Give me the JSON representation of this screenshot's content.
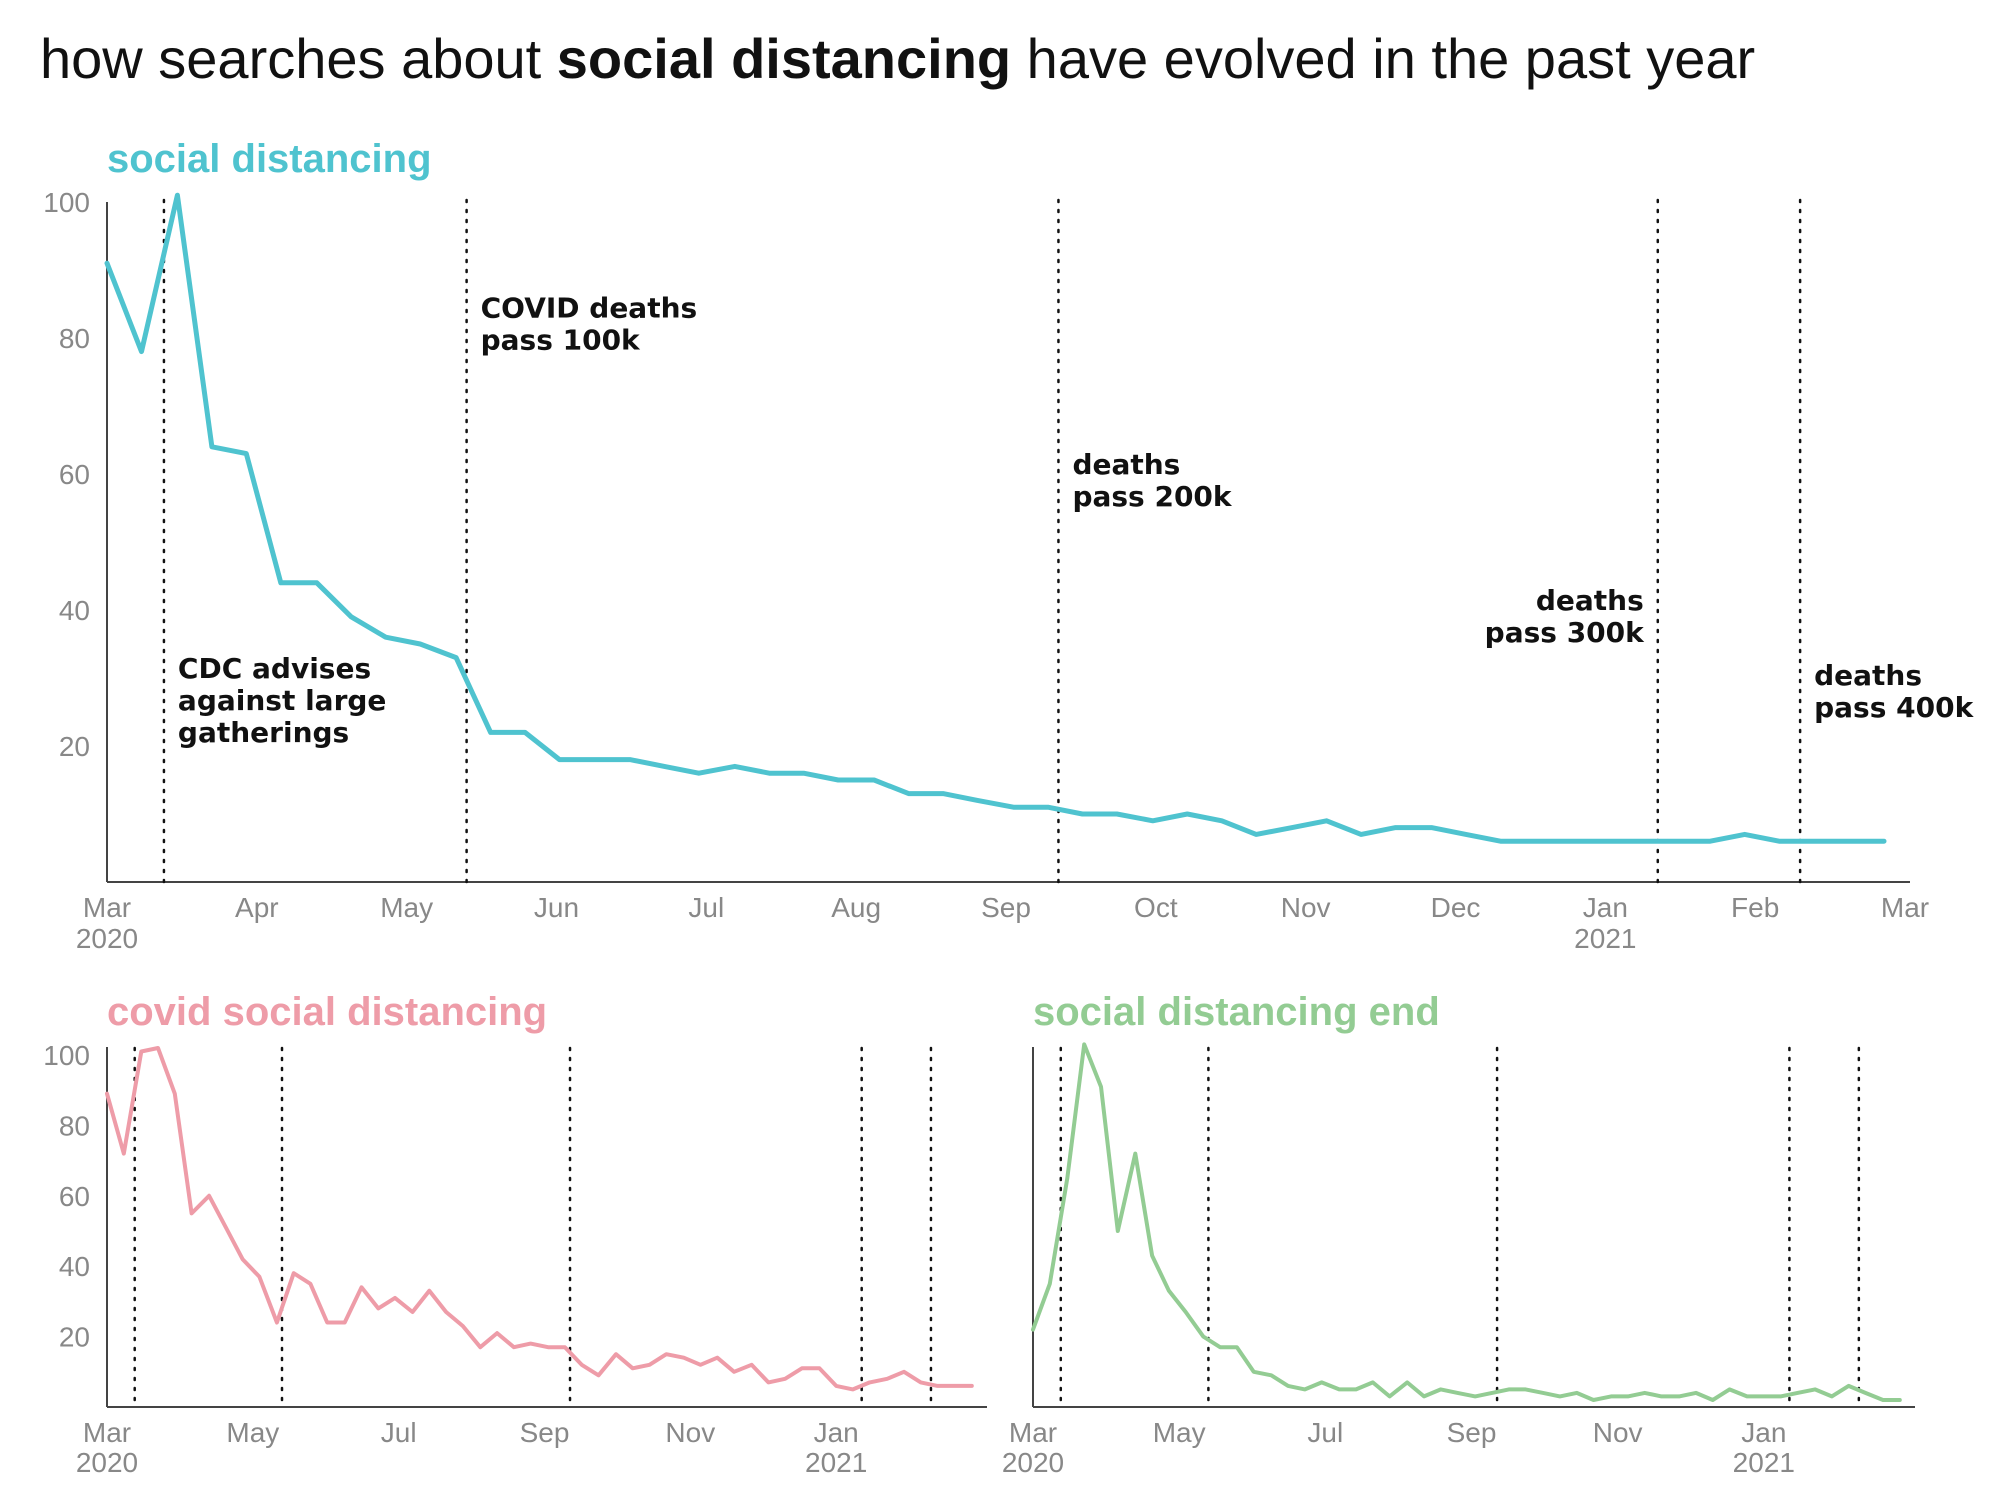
{
  "title": {
    "before": "how searches about ",
    "bold": "social distancing",
    "after": " have evolved in the past year"
  },
  "chart_data": [
    {
      "type": "line",
      "title": "social distancing",
      "color": "#4fc3cf",
      "ylim": [
        0,
        100
      ],
      "yticks": [
        20,
        40,
        60,
        80,
        100
      ],
      "xticks": [
        {
          "label": "Mar",
          "sub": "2020",
          "t": 0
        },
        {
          "label": "Apr",
          "sub": "",
          "t": 1
        },
        {
          "label": "May",
          "sub": "",
          "t": 2
        },
        {
          "label": "Jun",
          "sub": "",
          "t": 3
        },
        {
          "label": "Jul",
          "sub": "",
          "t": 4
        },
        {
          "label": "Aug",
          "sub": "",
          "t": 5
        },
        {
          "label": "Sep",
          "sub": "",
          "t": 6
        },
        {
          "label": "Oct",
          "sub": "",
          "t": 7
        },
        {
          "label": "Nov",
          "sub": "",
          "t": 8
        },
        {
          "label": "Dec",
          "sub": "",
          "t": 9
        },
        {
          "label": "Jan",
          "sub": "2021",
          "t": 10
        },
        {
          "label": "Feb",
          "sub": "",
          "t": 11
        },
        {
          "label": "Mar",
          "sub": "",
          "t": 12
        }
      ],
      "events": [
        {
          "t": 0.38,
          "label": [
            "CDC advises",
            "against large",
            "gatherings"
          ],
          "label_y": 30,
          "align": "right-of-line"
        },
        {
          "t": 2.4,
          "label": [
            "COVID deaths",
            "pass 100k"
          ],
          "label_y": 83,
          "align": "right-of-line"
        },
        {
          "t": 6.35,
          "label": [
            "deaths",
            "pass 200k"
          ],
          "label_y": 60,
          "align": "right-of-line"
        },
        {
          "t": 10.35,
          "label": [
            "deaths",
            "pass 300k"
          ],
          "label_y": 40,
          "align": "left-of-line"
        },
        {
          "t": 11.3,
          "label": [
            "deaths",
            "pass 400k"
          ],
          "label_y": 29,
          "align": "right-of-line"
        }
      ],
      "x": [
        0,
        0.23,
        0.47,
        0.7,
        0.93,
        1.16,
        1.4,
        1.63,
        1.86,
        2.09,
        2.33,
        2.56,
        2.79,
        3.02,
        3.26,
        3.49,
        3.72,
        3.95,
        4.19,
        4.42,
        4.65,
        4.88,
        5.12,
        5.35,
        5.58,
        5.81,
        6.05,
        6.28,
        6.51,
        6.74,
        6.98,
        7.21,
        7.44,
        7.67,
        7.91,
        8.14,
        8.37,
        8.6,
        8.84,
        9.07,
        9.3,
        9.53,
        9.77,
        10,
        10.23,
        10.46,
        10.7,
        10.93,
        11.16,
        11.39,
        11.63,
        11.86
      ],
      "series": [
        {
          "values": [
            91,
            78,
            101,
            64,
            63,
            44,
            44,
            39,
            36,
            35,
            33,
            22,
            22,
            18,
            18,
            18,
            17,
            16,
            17,
            16,
            16,
            15,
            15,
            13,
            13,
            12,
            11,
            11,
            10,
            10,
            9,
            10,
            9,
            7,
            8,
            9,
            7,
            8,
            8,
            7,
            6,
            6,
            6,
            6,
            6,
            6,
            6,
            7,
            6,
            6,
            6,
            6
          ]
        }
      ]
    },
    {
      "type": "line",
      "title": "covid social distancing",
      "color": "#ee9ca8",
      "ylim": [
        0,
        100
      ],
      "yticks": [
        20,
        40,
        60,
        80,
        100
      ],
      "xticks": [
        {
          "label": "Mar",
          "sub": "2020",
          "t": 0
        },
        {
          "label": "May",
          "sub": "",
          "t": 2
        },
        {
          "label": "Jul",
          "sub": "",
          "t": 4
        },
        {
          "label": "Sep",
          "sub": "",
          "t": 6
        },
        {
          "label": "Nov",
          "sub": "",
          "t": 8
        },
        {
          "label": "Jan",
          "sub": "2021",
          "t": 10
        }
      ],
      "events": [
        {
          "t": 0.38
        },
        {
          "t": 2.4
        },
        {
          "t": 6.35
        },
        {
          "t": 10.35
        },
        {
          "t": 11.3
        }
      ],
      "x": [
        0,
        0.23,
        0.47,
        0.7,
        0.93,
        1.16,
        1.4,
        1.63,
        1.86,
        2.09,
        2.33,
        2.56,
        2.79,
        3.02,
        3.26,
        3.49,
        3.72,
        3.95,
        4.19,
        4.42,
        4.65,
        4.88,
        5.12,
        5.35,
        5.58,
        5.81,
        6.05,
        6.28,
        6.51,
        6.74,
        6.98,
        7.21,
        7.44,
        7.67,
        7.91,
        8.14,
        8.37,
        8.6,
        8.84,
        9.07,
        9.3,
        9.53,
        9.77,
        10,
        10.23,
        10.46,
        10.7,
        10.93,
        11.16,
        11.39,
        11.63,
        11.86
      ],
      "series": [
        {
          "values": [
            89,
            72,
            101,
            102,
            89,
            55,
            60,
            51,
            42,
            37,
            24,
            38,
            35,
            24,
            24,
            34,
            28,
            31,
            27,
            33,
            27,
            23,
            17,
            21,
            17,
            18,
            17,
            17,
            12,
            9,
            15,
            11,
            12,
            15,
            14,
            12,
            14,
            10,
            12,
            7,
            8,
            11,
            11,
            6,
            5,
            7,
            8,
            10,
            7,
            6,
            6,
            6
          ]
        }
      ]
    },
    {
      "type": "line",
      "title": "social distancing end",
      "color": "#93cc93",
      "ylim": [
        0,
        100
      ],
      "yticks": [],
      "xticks": [
        {
          "label": "Mar",
          "sub": "2020",
          "t": 0
        },
        {
          "label": "May",
          "sub": "",
          "t": 2
        },
        {
          "label": "Jul",
          "sub": "",
          "t": 4
        },
        {
          "label": "Sep",
          "sub": "",
          "t": 6
        },
        {
          "label": "Nov",
          "sub": "",
          "t": 8
        },
        {
          "label": "Jan",
          "sub": "2021",
          "t": 10
        }
      ],
      "events": [
        {
          "t": 0.38
        },
        {
          "t": 2.4
        },
        {
          "t": 6.35
        },
        {
          "t": 10.35
        },
        {
          "t": 11.3
        }
      ],
      "x": [
        0,
        0.23,
        0.47,
        0.7,
        0.93,
        1.16,
        1.4,
        1.63,
        1.86,
        2.09,
        2.33,
        2.56,
        2.79,
        3.02,
        3.26,
        3.49,
        3.72,
        3.95,
        4.19,
        4.42,
        4.65,
        4.88,
        5.12,
        5.35,
        5.58,
        5.81,
        6.05,
        6.28,
        6.51,
        6.74,
        6.98,
        7.21,
        7.44,
        7.67,
        7.91,
        8.14,
        8.37,
        8.6,
        8.84,
        9.07,
        9.3,
        9.53,
        9.77,
        10,
        10.23,
        10.46,
        10.7,
        10.93,
        11.16,
        11.39,
        11.63,
        11.86
      ],
      "series": [
        {
          "values": [
            22,
            35,
            65,
            103,
            91,
            50,
            72,
            43,
            33,
            27,
            20,
            17,
            17,
            10,
            9,
            6,
            5,
            7,
            5,
            5,
            7,
            3,
            7,
            3,
            5,
            4,
            3,
            4,
            5,
            5,
            4,
            3,
            4,
            2,
            3,
            3,
            4,
            3,
            3,
            4,
            2,
            5,
            3,
            3,
            3,
            4,
            5,
            3,
            6,
            4,
            2,
            2
          ]
        }
      ]
    }
  ]
}
